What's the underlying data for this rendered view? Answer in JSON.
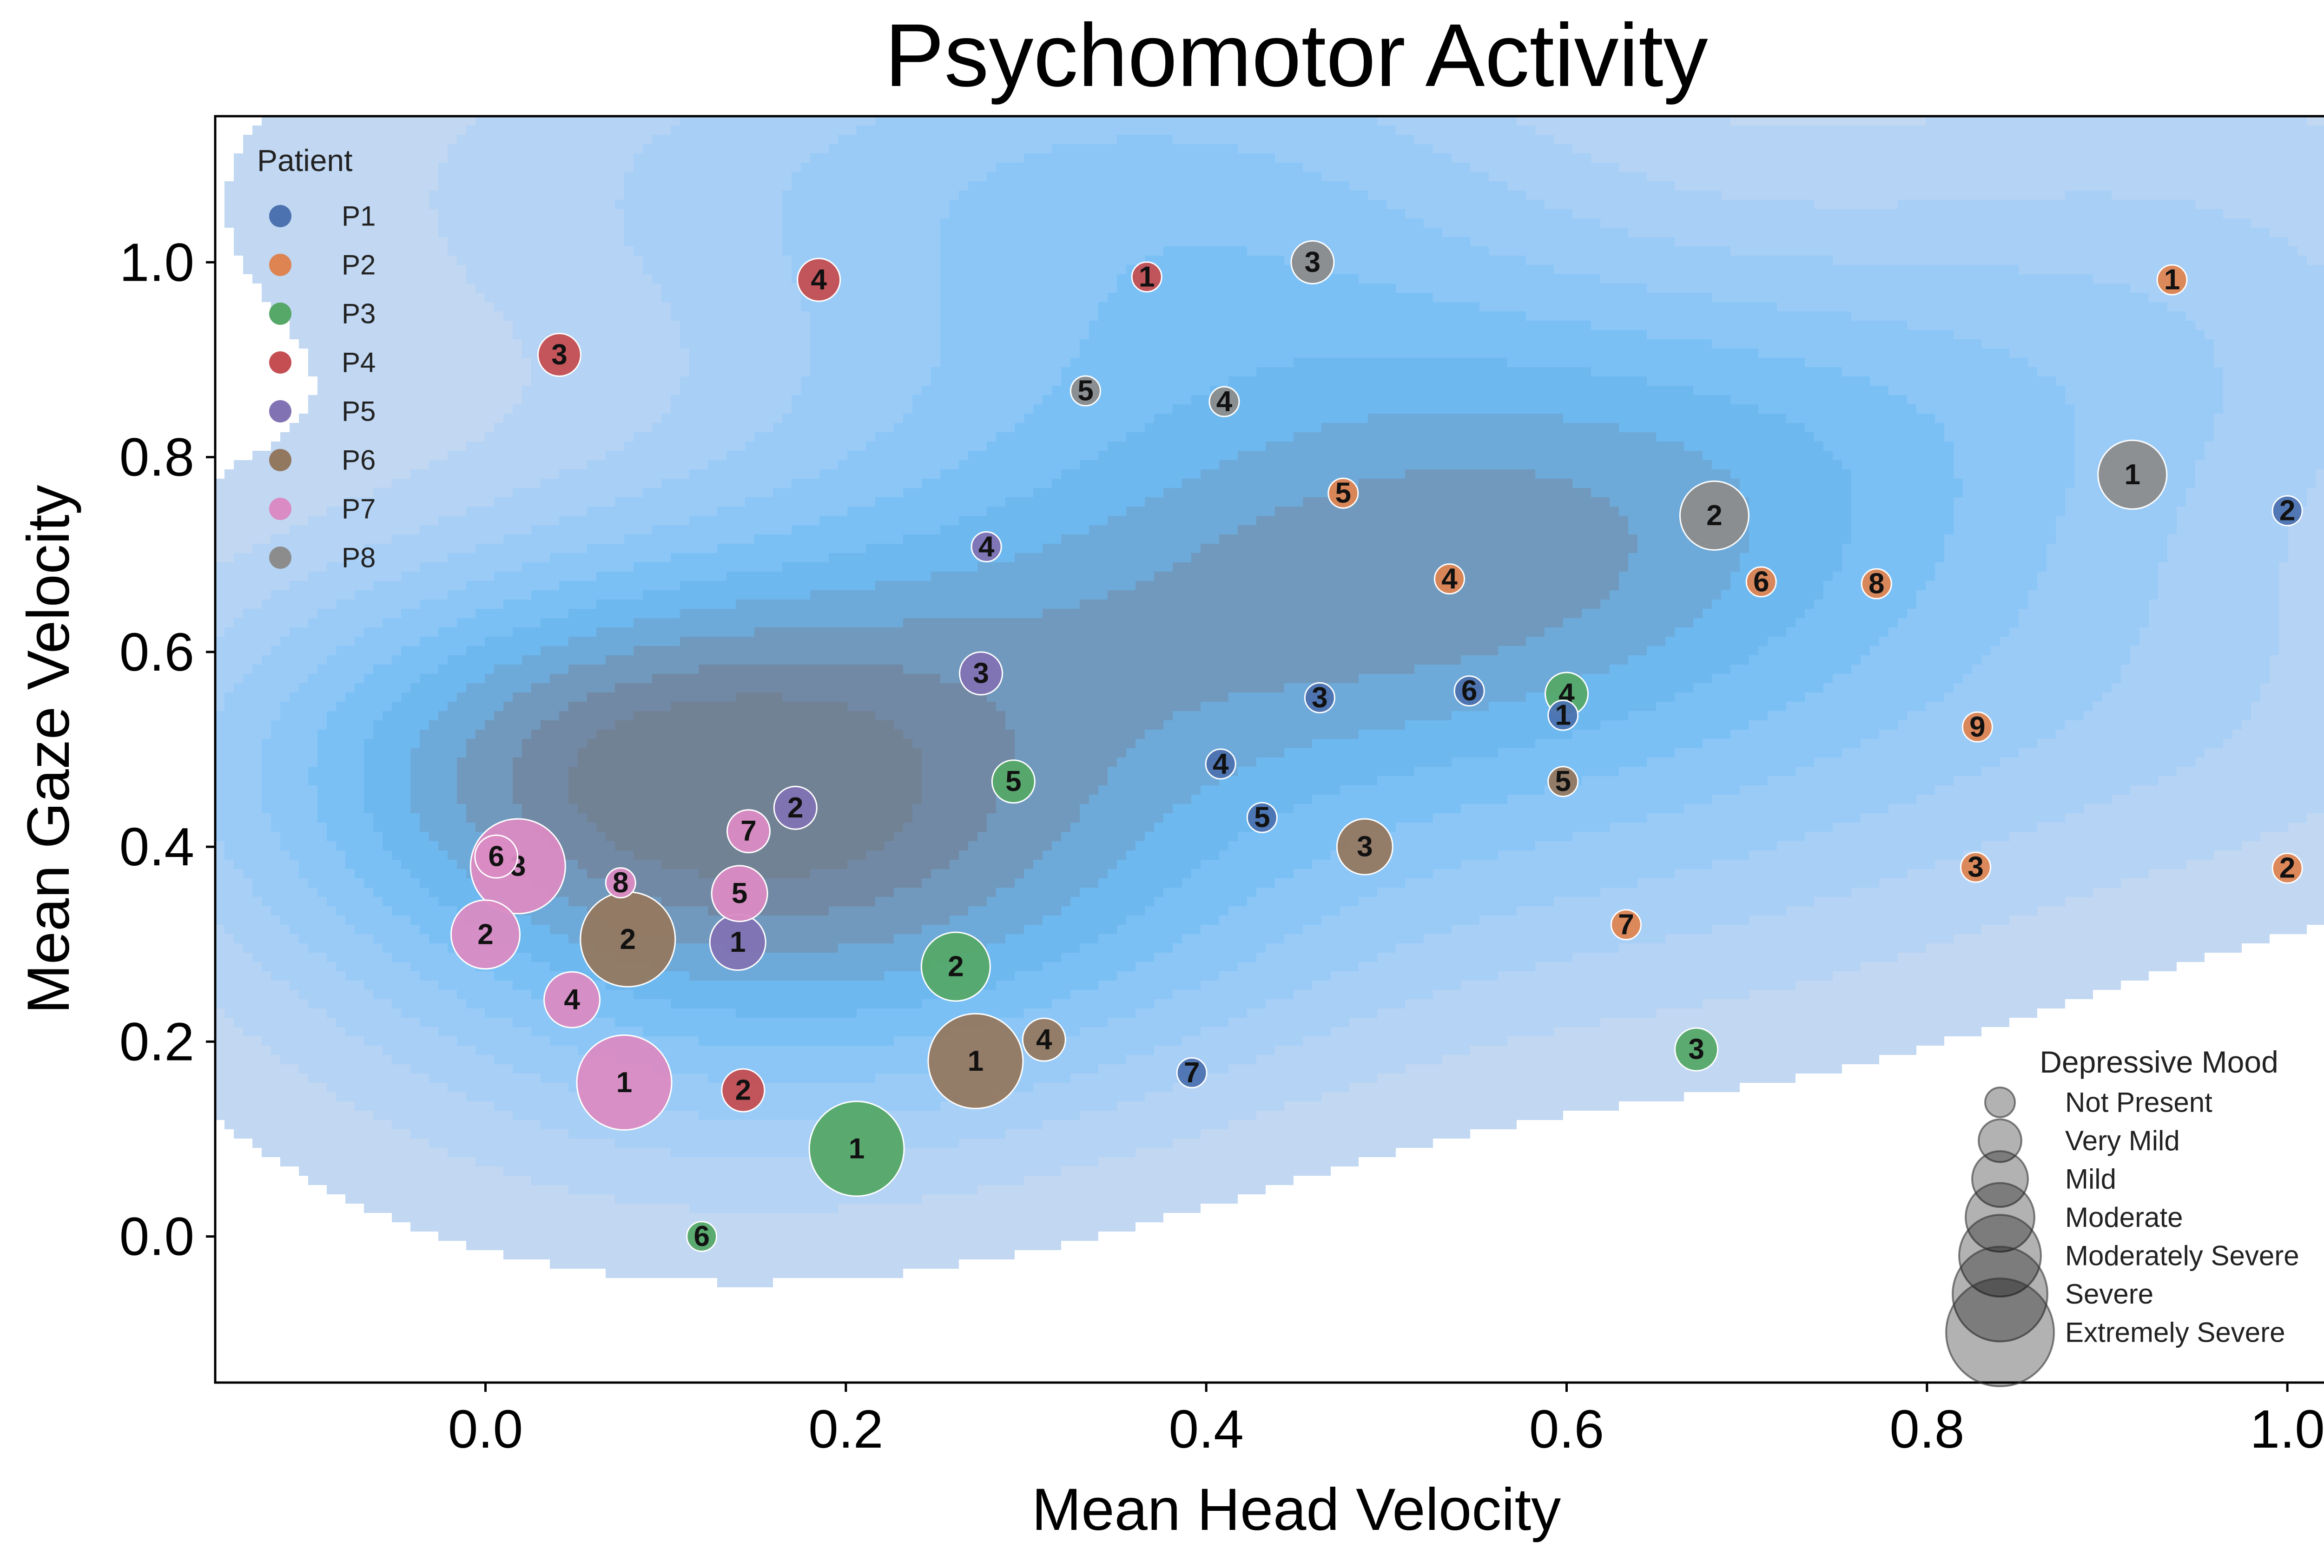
{
  "chart_data": {
    "type": "scatter",
    "title": "Psychomotor Activity",
    "xlabel": "Mean Head Velocity",
    "ylabel": "Mean Gaze Velocity",
    "xlim": [
      -0.15,
      1.05
    ],
    "ylim": [
      -0.15,
      1.15
    ],
    "xticks": [
      0.0,
      0.2,
      0.4,
      0.6,
      0.8,
      1.0
    ],
    "yticks": [
      0.0,
      0.2,
      0.4,
      0.6,
      0.8,
      1.0
    ],
    "tick_format_decimals": 1,
    "grid": false,
    "background_density": "kde contour of all points",
    "density_color": "#3a9cf0",
    "legend_patient": {
      "title": "Patient",
      "placement": "top-left",
      "entries": [
        {
          "name": "P1",
          "color": "#4c72b0"
        },
        {
          "name": "P2",
          "color": "#dd8452"
        },
        {
          "name": "P3",
          "color": "#55a868"
        },
        {
          "name": "P4",
          "color": "#c44e52"
        },
        {
          "name": "P5",
          "color": "#8172b3"
        },
        {
          "name": "P6",
          "color": "#937860"
        },
        {
          "name": "P7",
          "color": "#da8bc3"
        },
        {
          "name": "P8",
          "color": "#8c8c8c"
        }
      ]
    },
    "legend_size": {
      "title": "Depressive Mood",
      "placement": "bottom-right",
      "entries": [
        {
          "label": "Not Present",
          "level": 0
        },
        {
          "label": "Very Mild",
          "level": 1
        },
        {
          "label": "Mild",
          "level": 2
        },
        {
          "label": "Moderate",
          "level": 3
        },
        {
          "label": "Moderately Severe",
          "level": 4
        },
        {
          "label": "Severe",
          "level": 5
        },
        {
          "label": "Extremely Severe",
          "level": 6
        }
      ]
    },
    "series": [
      {
        "name": "P1",
        "points": [
          {
            "x": 1.0,
            "y": 0.745,
            "label": "2",
            "mood": 0
          },
          {
            "x": 0.463,
            "y": 0.553,
            "label": "3",
            "mood": 0
          },
          {
            "x": 0.408,
            "y": 0.485,
            "label": "4",
            "mood": 0
          },
          {
            "x": 0.431,
            "y": 0.43,
            "label": "5",
            "mood": 0
          },
          {
            "x": 0.546,
            "y": 0.56,
            "label": "6",
            "mood": 0
          },
          {
            "x": 0.392,
            "y": 0.168,
            "label": "7",
            "mood": 0
          },
          {
            "x": 0.598,
            "y": 0.535,
            "label": "1",
            "mood": 0
          }
        ]
      },
      {
        "name": "P2",
        "points": [
          {
            "x": 0.936,
            "y": 0.982,
            "label": "1",
            "mood": 0
          },
          {
            "x": 1.0,
            "y": 0.378,
            "label": "2",
            "mood": 0
          },
          {
            "x": 0.827,
            "y": 0.379,
            "label": "3",
            "mood": 0
          },
          {
            "x": 0.535,
            "y": 0.675,
            "label": "4",
            "mood": 0
          },
          {
            "x": 0.476,
            "y": 0.763,
            "label": "5",
            "mood": 0
          },
          {
            "x": 0.708,
            "y": 0.672,
            "label": "6",
            "mood": 0
          },
          {
            "x": 0.633,
            "y": 0.32,
            "label": "7",
            "mood": 0
          },
          {
            "x": 0.772,
            "y": 0.67,
            "label": "8",
            "mood": 0
          },
          {
            "x": 0.828,
            "y": 0.523,
            "label": "9",
            "mood": 0
          }
        ]
      },
      {
        "name": "P3",
        "points": [
          {
            "x": 0.206,
            "y": 0.09,
            "label": "1",
            "mood": 5
          },
          {
            "x": 0.261,
            "y": 0.277,
            "label": "2",
            "mood": 3
          },
          {
            "x": 0.672,
            "y": 0.192,
            "label": "3",
            "mood": 1
          },
          {
            "x": 0.6,
            "y": 0.557,
            "label": "4",
            "mood": 1
          },
          {
            "x": 0.293,
            "y": 0.467,
            "label": "5",
            "mood": 1
          },
          {
            "x": 0.12,
            "y": 0.0,
            "label": "6",
            "mood": 0
          }
        ]
      },
      {
        "name": "P4",
        "points": [
          {
            "x": 0.367,
            "y": 0.985,
            "label": "1",
            "mood": 0
          },
          {
            "x": 0.143,
            "y": 0.15,
            "label": "2",
            "mood": 1
          },
          {
            "x": 0.041,
            "y": 0.905,
            "label": "3",
            "mood": 1
          },
          {
            "x": 0.185,
            "y": 0.982,
            "label": "4",
            "mood": 1
          }
        ]
      },
      {
        "name": "P5",
        "points": [
          {
            "x": 0.14,
            "y": 0.302,
            "label": "1",
            "mood": 2
          },
          {
            "x": 0.172,
            "y": 0.44,
            "label": "2",
            "mood": 1
          },
          {
            "x": 0.275,
            "y": 0.578,
            "label": "3",
            "mood": 1
          },
          {
            "x": 0.278,
            "y": 0.708,
            "label": "4",
            "mood": 0
          }
        ]
      },
      {
        "name": "P6",
        "points": [
          {
            "x": 0.272,
            "y": 0.18,
            "label": "1",
            "mood": 5
          },
          {
            "x": 0.079,
            "y": 0.305,
            "label": "2",
            "mood": 5
          },
          {
            "x": 0.488,
            "y": 0.4,
            "label": "3",
            "mood": 2
          },
          {
            "x": 0.31,
            "y": 0.202,
            "label": "4",
            "mood": 1
          },
          {
            "x": 0.598,
            "y": 0.467,
            "label": "5",
            "mood": 0
          }
        ]
      },
      {
        "name": "P7",
        "points": [
          {
            "x": 0.077,
            "y": 0.158,
            "label": "1",
            "mood": 5
          },
          {
            "x": 0.0,
            "y": 0.31,
            "label": "2",
            "mood": 3
          },
          {
            "x": 0.018,
            "y": 0.38,
            "label": "3",
            "mood": 5
          },
          {
            "x": 0.048,
            "y": 0.243,
            "label": "4",
            "mood": 2
          },
          {
            "x": 0.141,
            "y": 0.352,
            "label": "5",
            "mood": 2
          },
          {
            "x": 0.006,
            "y": 0.39,
            "label": "6",
            "mood": 1
          },
          {
            "x": 0.146,
            "y": 0.416,
            "label": "7",
            "mood": 1
          },
          {
            "x": 0.075,
            "y": 0.363,
            "label": "8",
            "mood": 0
          }
        ]
      },
      {
        "name": "P8",
        "points": [
          {
            "x": 0.914,
            "y": 0.782,
            "label": "1",
            "mood": 3
          },
          {
            "x": 0.682,
            "y": 0.74,
            "label": "2",
            "mood": 3
          },
          {
            "x": 0.459,
            "y": 1.0,
            "label": "3",
            "mood": 1
          },
          {
            "x": 0.41,
            "y": 0.857,
            "label": "4",
            "mood": 0
          },
          {
            "x": 0.333,
            "y": 0.868,
            "label": "5",
            "mood": 0
          }
        ]
      }
    ]
  }
}
